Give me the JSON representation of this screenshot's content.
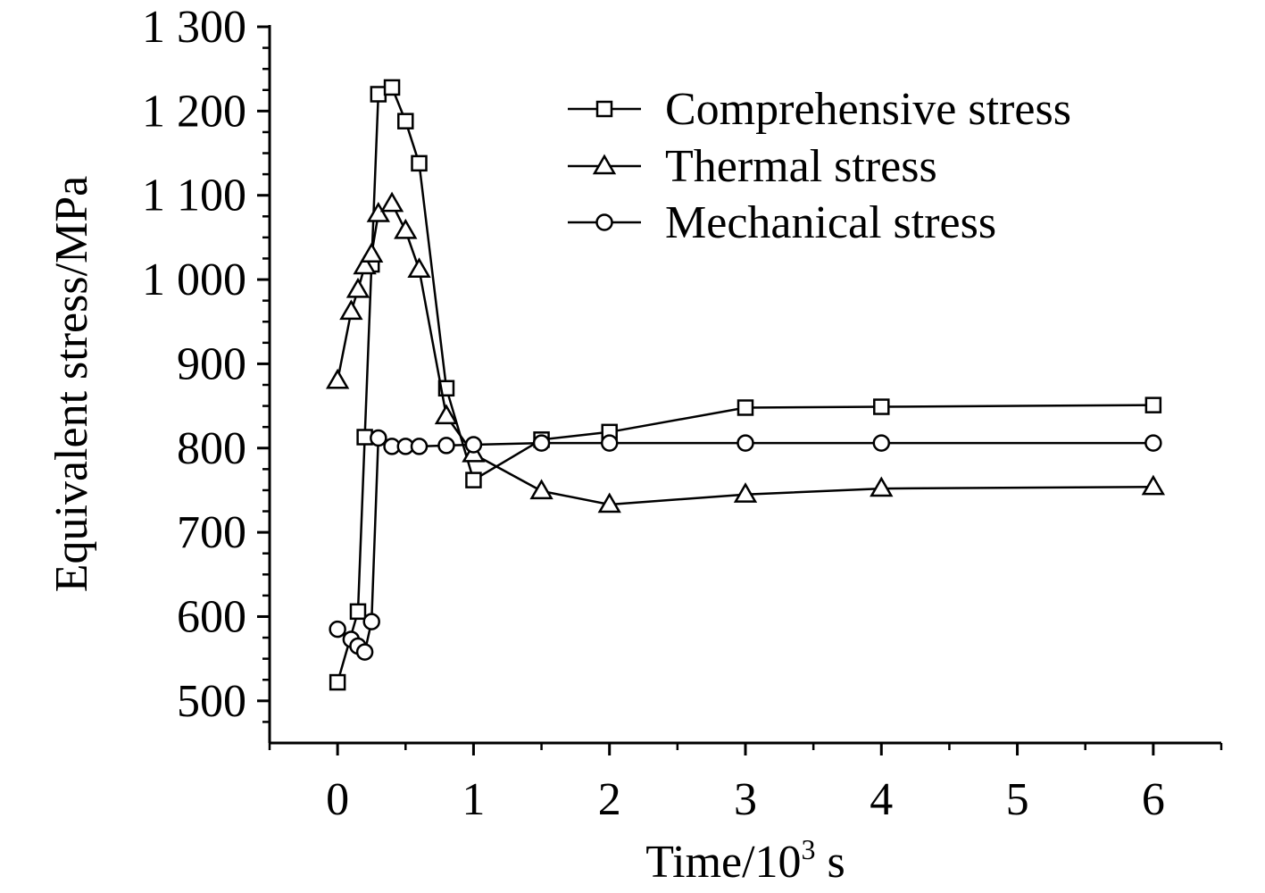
{
  "chart_data": {
    "type": "line",
    "xlabel": "Time/10",
    "xlabel_sup": "3",
    "xlabel_unit": " s",
    "ylabel": "Equivalent stress/MPa",
    "xlim": [
      -0.5,
      6.5
    ],
    "ylim": [
      450,
      1300
    ],
    "x_ticks": [
      0,
      1,
      2,
      3,
      4,
      5,
      6
    ],
    "x_tick_labels": [
      "0",
      "1",
      "2",
      "3",
      "4",
      "5",
      "6"
    ],
    "y_ticks": [
      500,
      600,
      700,
      800,
      900,
      1000,
      1100,
      1200,
      1300
    ],
    "y_tick_labels": [
      "500",
      "600",
      "700",
      "800",
      "900",
      "1 000",
      "1 100",
      "1 200",
      "1 300"
    ],
    "grid": false,
    "legend_position": "top-right",
    "series": [
      {
        "name": "Comprehensive stress",
        "marker": "square",
        "x": [
          0,
          0.15,
          0.2,
          0.25,
          0.3,
          0.4,
          0.5,
          0.6,
          0.8,
          1.0,
          1.5,
          2.0,
          3.0,
          4.0,
          6.0
        ],
        "y": [
          522,
          606,
          813,
          1018,
          1220,
          1228,
          1188,
          1138,
          871,
          762,
          810,
          819,
          848,
          849,
          851
        ]
      },
      {
        "name": "Thermal stress",
        "marker": "triangle",
        "x": [
          0,
          0.1,
          0.15,
          0.2,
          0.25,
          0.3,
          0.4,
          0.5,
          0.6,
          0.8,
          1.0,
          1.5,
          2.0,
          3.0,
          4.0,
          6.0
        ],
        "y": [
          880,
          962,
          988,
          1016,
          1030,
          1078,
          1090,
          1058,
          1012,
          838,
          793,
          749,
          733,
          745,
          752,
          754
        ]
      },
      {
        "name": "Mechanical stress",
        "marker": "circle",
        "x": [
          0,
          0.1,
          0.15,
          0.2,
          0.25,
          0.3,
          0.4,
          0.5,
          0.6,
          0.8,
          1.0,
          1.5,
          2.0,
          3.0,
          4.0,
          6.0
        ],
        "y": [
          585,
          573,
          565,
          558,
          594,
          812,
          802,
          802,
          802,
          803,
          804,
          806,
          806,
          806,
          806,
          806
        ]
      }
    ]
  }
}
